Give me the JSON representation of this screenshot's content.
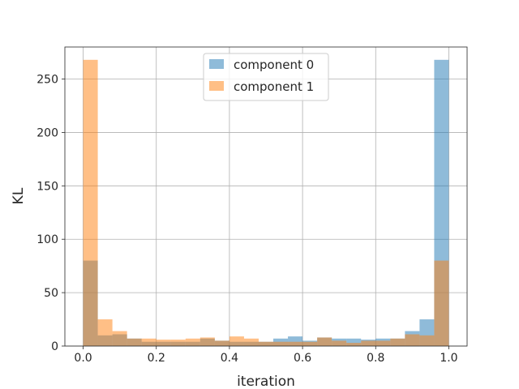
{
  "chart_data": {
    "type": "bar",
    "subtype": "overlapping-histogram",
    "xlabel": "iteration",
    "ylabel": "KL",
    "xlim": [
      -0.05,
      1.05
    ],
    "ylim": [
      0,
      280
    ],
    "grid": true,
    "legend_position": "upper center",
    "bins": {
      "start": 0.0,
      "end": 1.0,
      "count": 25
    },
    "x_ticks": [
      0.0,
      0.2,
      0.4,
      0.6,
      0.8,
      1.0
    ],
    "x_tick_labels": [
      "0.0",
      "0.2",
      "0.4",
      "0.6",
      "0.8",
      "1.0"
    ],
    "y_ticks": [
      0,
      50,
      100,
      150,
      200,
      250
    ],
    "y_tick_labels": [
      "0",
      "50",
      "100",
      "150",
      "200",
      "250"
    ],
    "series": [
      {
        "name": "component 0",
        "color": "#1f77b4",
        "alpha": 0.5,
        "values": [
          80,
          10,
          11,
          7,
          4,
          4,
          4,
          4,
          7,
          5,
          4,
          4,
          4,
          7,
          9,
          5,
          8,
          7,
          7,
          6,
          7,
          7,
          14,
          25,
          268
        ]
      },
      {
        "name": "component 1",
        "color": "#ff7f0e",
        "alpha": 0.5,
        "values": [
          268,
          25,
          14,
          7,
          7,
          6,
          6,
          7,
          8,
          5,
          9,
          7,
          4,
          4,
          4,
          4,
          8,
          5,
          3,
          5,
          5,
          7,
          11,
          10,
          80
        ]
      }
    ]
  }
}
